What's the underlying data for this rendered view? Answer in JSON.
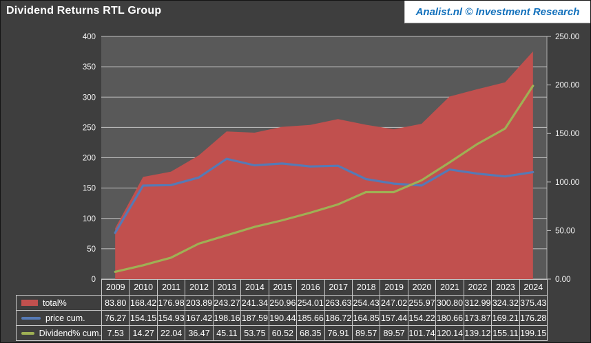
{
  "header": {
    "title": "Dividend Returns RTL Group",
    "brand": "Analist.nl © Investment Research"
  },
  "colors": {
    "background": "#3E3E3E",
    "plot_background": "#595959",
    "gridline": "#C4C4C4",
    "axis_text": "#F2F2F2",
    "table_text": "#FFFFFF",
    "table_border": "#C9C9C9",
    "brand_text": "#1371BC",
    "brand_background": "#FFFFFF",
    "total_fill": "#C1504E",
    "price_line": "#567AB5",
    "dividend_line": "#9FB054"
  },
  "chart_data": {
    "type": "area+line combo",
    "title": "Dividend Returns RTL Group",
    "categories": [
      "2009",
      "2010",
      "2011",
      "2012",
      "2013",
      "2014",
      "2015",
      "2016",
      "2017",
      "2018",
      "2019",
      "2020",
      "2021",
      "2022",
      "2023",
      "2024"
    ],
    "series": [
      {
        "name": "total%",
        "type": "area",
        "axis": "left",
        "color": "#C1504E",
        "values": [
          83.8,
          168.42,
          176.98,
          203.89,
          243.27,
          241.34,
          250.96,
          254.01,
          263.63,
          254.43,
          247.02,
          255.97,
          300.8,
          312.99,
          324.32,
          375.43
        ]
      },
      {
        "name": "price cum.",
        "type": "line",
        "axis": "left",
        "color": "#567AB5",
        "values": [
          76.27,
          154.15,
          154.93,
          167.42,
          198.16,
          187.59,
          190.44,
          185.66,
          186.72,
          164.85,
          157.44,
          154.22,
          180.66,
          173.87,
          169.21,
          176.28
        ]
      },
      {
        "name": "Dividend% cum.",
        "type": "line",
        "axis": "right",
        "color": "#9FB054",
        "values": [
          7.53,
          14.27,
          22.04,
          36.47,
          45.11,
          53.75,
          60.52,
          68.35,
          76.91,
          89.57,
          89.57,
          101.74,
          120.14,
          139.12,
          155.11,
          199.15
        ]
      }
    ],
    "left_axis": {
      "min": 0,
      "max": 400,
      "step": 50,
      "ticks": [
        "400",
        "350",
        "300",
        "250",
        "200",
        "150",
        "100",
        "50",
        "0"
      ]
    },
    "right_axis": {
      "min": 0,
      "max": 250,
      "step": 50,
      "ticks": [
        "250.00",
        "200.00",
        "150.00",
        "100.00",
        "50.00",
        "0.00"
      ]
    },
    "grid": true,
    "legend_position": "left-of-table",
    "value_format": "2-decimals"
  }
}
